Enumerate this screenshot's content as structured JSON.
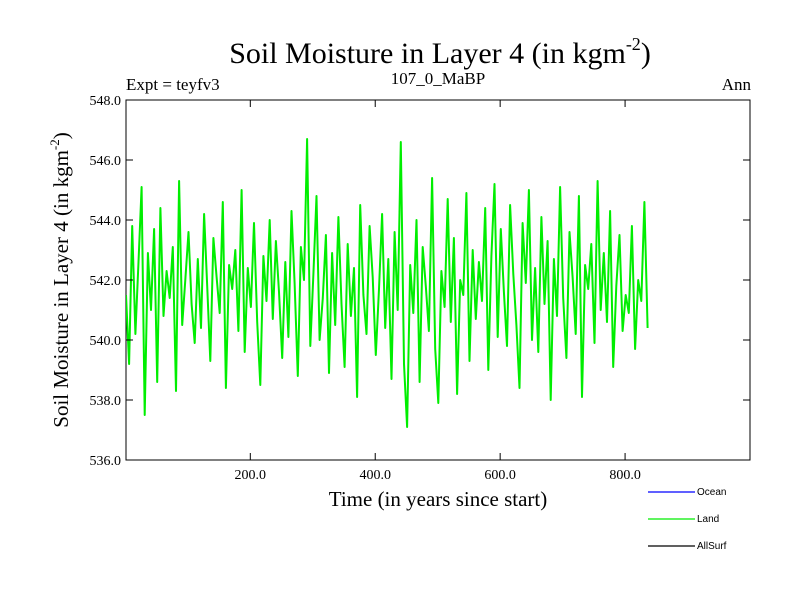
{
  "chart_data": {
    "type": "line",
    "title": "Soil Moisture in Layer 4 (in kgm",
    "title_sup": "-2",
    "title_close": ")",
    "subtitle_left": "Expt = teyfv3",
    "subtitle_center": "107_0_MaBP",
    "subtitle_right": "Ann",
    "xlabel": "Time (in years since start)",
    "ylabel": "Soil Moisture in Layer 4 (in kgm",
    "ylabel_sup": "-2",
    "ylabel_close": ")",
    "xlim": [
      1,
      1000
    ],
    "ylim": [
      536.0,
      548.0
    ],
    "x_ticks": [
      {
        "value": 200,
        "label": "200.0"
      },
      {
        "value": 400,
        "label": "400.0"
      },
      {
        "value": 600,
        "label": "600.0"
      },
      {
        "value": 800,
        "label": "800.0"
      }
    ],
    "y_ticks": [
      {
        "value": 536,
        "label": "536.0"
      },
      {
        "value": 538,
        "label": "538.0"
      },
      {
        "value": 540,
        "label": "540.0"
      },
      {
        "value": 542,
        "label": "542.0"
      },
      {
        "value": 544,
        "label": "544.0"
      },
      {
        "value": 546,
        "label": "546.0"
      },
      {
        "value": 548,
        "label": "548.0"
      }
    ],
    "legend": {
      "placement": "bottom-right",
      "entries": [
        {
          "name": "Ocean",
          "color": "#0000ff"
        },
        {
          "name": "Land",
          "color": "#00ee00"
        },
        {
          "name": "AllSurf",
          "color": "#000000"
        }
      ]
    },
    "series": [
      {
        "name": "Land",
        "color": "#00ee00",
        "x_start": 1,
        "x_step": 5,
        "values": [
          541.5,
          539.2,
          543.8,
          540.2,
          542.6,
          545.1,
          537.5,
          542.9,
          541.0,
          543.7,
          538.6,
          544.4,
          540.8,
          542.3,
          541.4,
          543.1,
          538.3,
          545.3,
          540.5,
          542.0,
          543.6,
          541.2,
          539.9,
          542.7,
          540.4,
          544.2,
          541.8,
          539.3,
          543.4,
          542.1,
          540.9,
          544.6,
          538.4,
          542.5,
          541.7,
          543.0,
          540.3,
          545.0,
          539.6,
          542.4,
          541.1,
          543.9,
          540.6,
          538.5,
          542.8,
          541.3,
          544.0,
          540.7,
          543.3,
          541.6,
          539.4,
          542.6,
          540.1,
          544.3,
          541.9,
          538.8,
          543.1,
          542.0,
          546.7,
          539.8,
          542.2,
          544.8,
          540.0,
          541.4,
          543.5,
          538.9,
          542.9,
          540.5,
          544.1,
          541.2,
          539.1,
          543.2,
          540.8,
          542.4,
          538.1,
          544.5,
          541.5,
          540.2,
          543.8,
          542.1,
          539.5,
          541.7,
          544.2,
          540.4,
          542.7,
          538.7,
          543.6,
          541.0,
          546.6,
          539.2,
          537.1,
          542.5,
          540.9,
          544.0,
          538.6,
          543.1,
          541.8,
          540.3,
          545.4,
          539.7,
          537.9,
          542.3,
          541.1,
          544.7,
          540.6,
          543.4,
          538.2,
          542.0,
          541.5,
          544.9,
          539.3,
          543.0,
          540.7,
          542.6,
          541.3,
          544.4,
          539.0,
          542.8,
          545.2,
          540.1,
          543.7,
          541.6,
          539.8,
          544.5,
          542.2,
          540.5,
          538.4,
          543.9,
          541.9,
          545.0,
          540.0,
          542.4,
          539.6,
          544.1,
          541.2,
          543.3,
          538.0,
          542.7,
          540.8,
          545.1,
          541.4,
          539.4,
          543.6,
          542.1,
          540.2,
          544.8,
          538.1,
          542.5,
          541.7,
          543.2,
          539.9,
          545.3,
          541.0,
          542.9,
          540.6,
          544.3,
          539.1,
          541.8,
          543.5,
          540.3,
          541.5,
          540.9,
          543.8,
          539.7,
          542.0,
          541.3,
          544.6,
          540.4
        ]
      }
    ]
  }
}
